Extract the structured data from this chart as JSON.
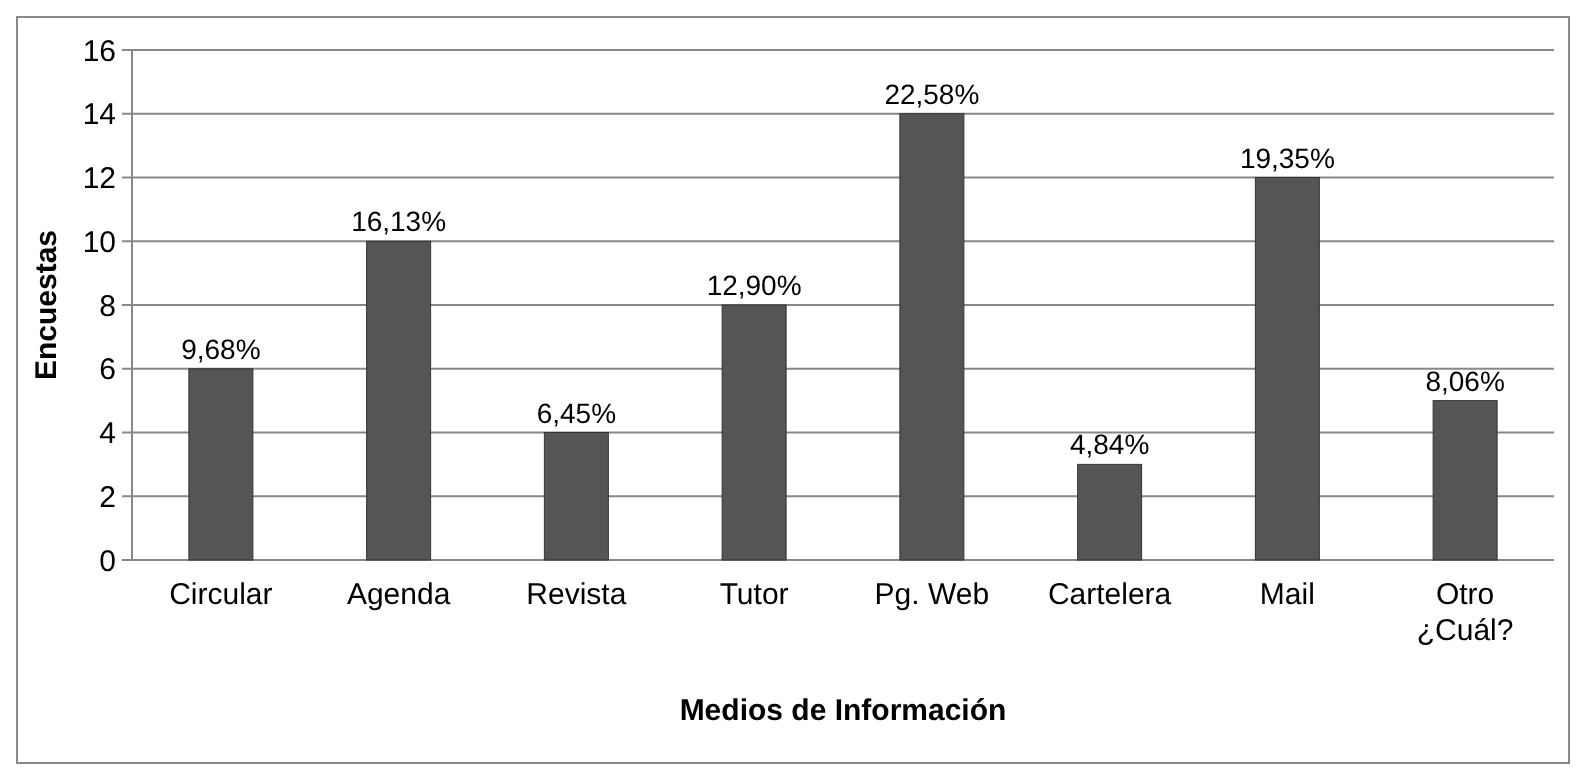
{
  "chart_data": {
    "type": "bar",
    "xlabel": "Medios de Información",
    "ylabel": "Encuestas",
    "categories": [
      "Circular",
      "Agenda",
      "Revista",
      "Tutor",
      "Pg. Web",
      "Cartelera",
      "Mail",
      "Otro\n¿Cuál?"
    ],
    "values": [
      6,
      10,
      4,
      8,
      14,
      3,
      12,
      5
    ],
    "annotations": [
      {
        "text": "9,68%",
        "x": "Circular",
        "y": 6
      },
      {
        "text": "16,13%",
        "x": "Agenda",
        "y": 10
      },
      {
        "text": "6,45%",
        "x": "Revista",
        "y": 4
      },
      {
        "text": "12,90%",
        "x": "Tutor",
        "y": 8
      },
      {
        "text": "22,58%",
        "x": "Pg. Web",
        "y": 14
      },
      {
        "text": "4,84%",
        "x": "Cartelera",
        "y": 3
      },
      {
        "text": "19,35%",
        "x": "Mail",
        "y": 12
      },
      {
        "text": "8,06%",
        "x": "Otro\n¿Cuál?",
        "y": 5
      }
    ],
    "color": "#555555",
    "ylim": [
      0,
      16
    ],
    "yticks": [
      0,
      2,
      4,
      6,
      8,
      10,
      12,
      14,
      16
    ],
    "grid": "y"
  }
}
